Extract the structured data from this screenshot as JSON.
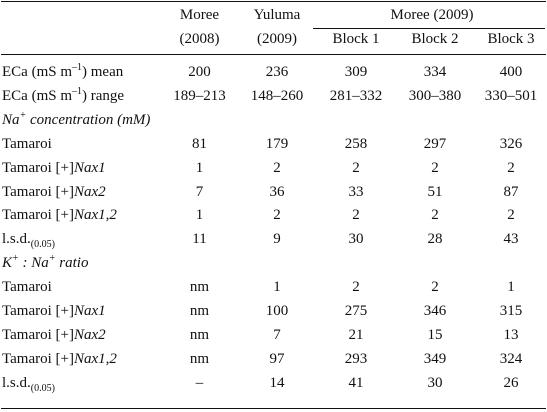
{
  "header": {
    "row1": [
      "",
      "Moree",
      "Yuluma",
      "Moree (2009)",
      "",
      ""
    ],
    "row2": [
      "",
      "(2008)",
      "(2009)",
      "Block 1",
      "Block 2",
      "Block 3"
    ]
  },
  "eca": {
    "mean": {
      "label_pre": "ECa (mS m",
      "label_sup": "–1",
      "label_post": ") mean",
      "values": [
        "200",
        "236",
        "309",
        "334",
        "400"
      ]
    },
    "range": {
      "label_pre": "ECa (mS m",
      "label_sup": "–1",
      "label_post": ") range",
      "values": [
        "189–213",
        "148–260",
        "281–332",
        "300–380",
        "330–501"
      ]
    }
  },
  "na_section": {
    "title_pre": "Na",
    "title_sup": "+",
    "title_post": " concentration (mM)",
    "rows": [
      {
        "label": "Tamaroi",
        "gene": "",
        "values": [
          "81",
          "179",
          "258",
          "297",
          "326"
        ]
      },
      {
        "label": "Tamaroi [+]",
        "gene": "Nax1",
        "values": [
          "1",
          "2",
          "2",
          "2",
          "2"
        ]
      },
      {
        "label": "Tamaroi [+]",
        "gene": "Nax2",
        "values": [
          "7",
          "36",
          "33",
          "51",
          "87"
        ]
      },
      {
        "label": "Tamaroi [+]",
        "gene": "Nax1,2",
        "values": [
          "1",
          "2",
          "2",
          "2",
          "2"
        ]
      }
    ],
    "lsd": {
      "label": "l.s.d.",
      "sub": "(0.05)",
      "values": [
        "11",
        "9",
        "30",
        "28",
        "43"
      ]
    }
  },
  "k_section": {
    "title_k": "K",
    "title_k_sup": "+",
    "title_mid": " : Na",
    "title_na_sup": "+",
    "title_post": " ratio",
    "rows": [
      {
        "label": "Tamaroi",
        "gene": "",
        "values": [
          "nm",
          "1",
          "2",
          "2",
          "1"
        ]
      },
      {
        "label": "Tamaroi [+]",
        "gene": "Nax1",
        "values": [
          "nm",
          "100",
          "275",
          "346",
          "315"
        ]
      },
      {
        "label": "Tamaroi [+]",
        "gene": "Nax2",
        "values": [
          "nm",
          "7",
          "21",
          "15",
          "13"
        ]
      },
      {
        "label": "Tamaroi [+]",
        "gene": "Nax1,2",
        "values": [
          "nm",
          "97",
          "293",
          "349",
          "324"
        ]
      }
    ],
    "lsd": {
      "label": "l.s.d.",
      "sub": "(0.05)",
      "values": [
        "–",
        "14",
        "41",
        "30",
        "26"
      ]
    }
  }
}
